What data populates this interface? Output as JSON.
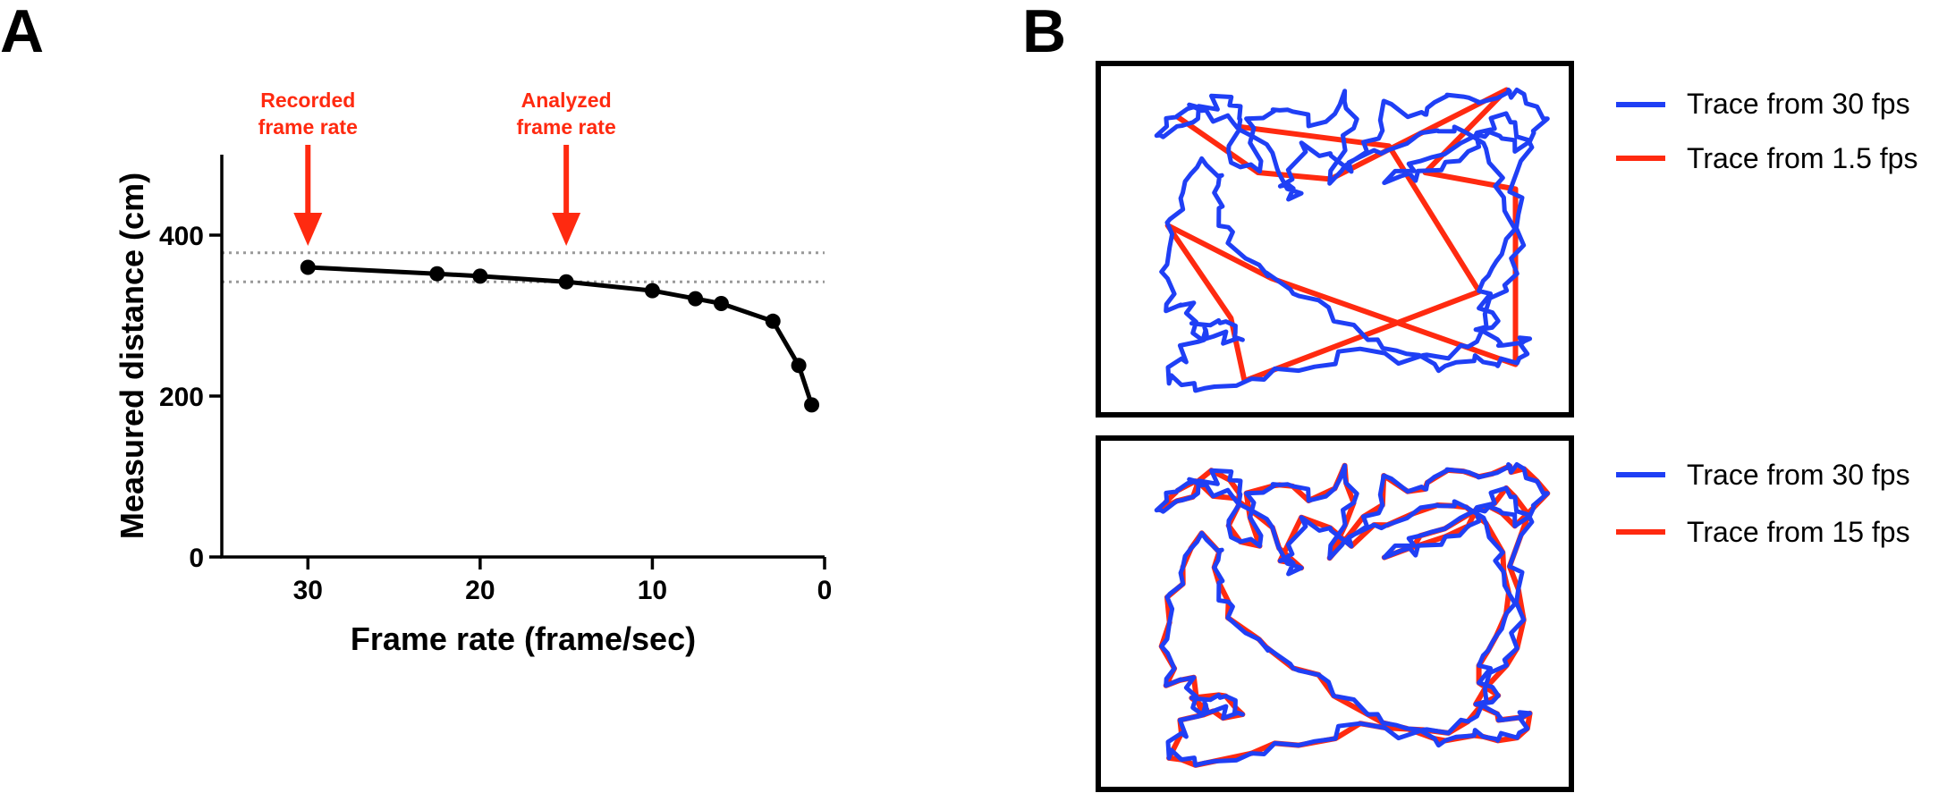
{
  "panel_labels": {
    "a": "A",
    "b": "B"
  },
  "colors": {
    "series": "#000000",
    "annotation": "#ff2a10",
    "reference_lines": "#999999",
    "trace_30fps": "#1f3ff5",
    "trace_low": "#ff2a10"
  },
  "chart_data": [
    {
      "type": "line",
      "panel": "A",
      "xlabel": "Frame rate (frame/sec)",
      "ylabel": "Measured distance (cm)",
      "x_reversed": true,
      "xlim": [
        35,
        0
      ],
      "ylim": [
        0,
        500
      ],
      "xticks": [
        30,
        20,
        10,
        0
      ],
      "yticks": [
        0,
        200,
        400
      ],
      "grid": false,
      "x": [
        30,
        22.5,
        20,
        15,
        10,
        7.5,
        6,
        3,
        1.5,
        0.75
      ],
      "values": [
        360,
        352,
        349,
        342,
        331,
        321,
        315,
        293,
        238,
        189
      ],
      "reference_lines_y": [
        378,
        342
      ],
      "annotations": [
        {
          "lines": [
            "Recorded",
            "frame rate"
          ],
          "x": 30
        },
        {
          "lines": [
            "Analyzed",
            "frame rate"
          ],
          "x": 15
        }
      ]
    },
    {
      "type": "line",
      "panel": "B",
      "series": [
        {
          "name": "Trace from 30 fps",
          "color": "#1f3ff5"
        },
        {
          "name": "Trace from 1.5 fps",
          "color": "#ff2a10"
        }
      ],
      "legend_position": "right"
    },
    {
      "type": "line",
      "panel": "B",
      "series": [
        {
          "name": "Trace from 30 fps",
          "color": "#1f3ff5"
        },
        {
          "name": "Trace from 15 fps",
          "color": "#ff2a10"
        }
      ],
      "legend_position": "right"
    }
  ]
}
